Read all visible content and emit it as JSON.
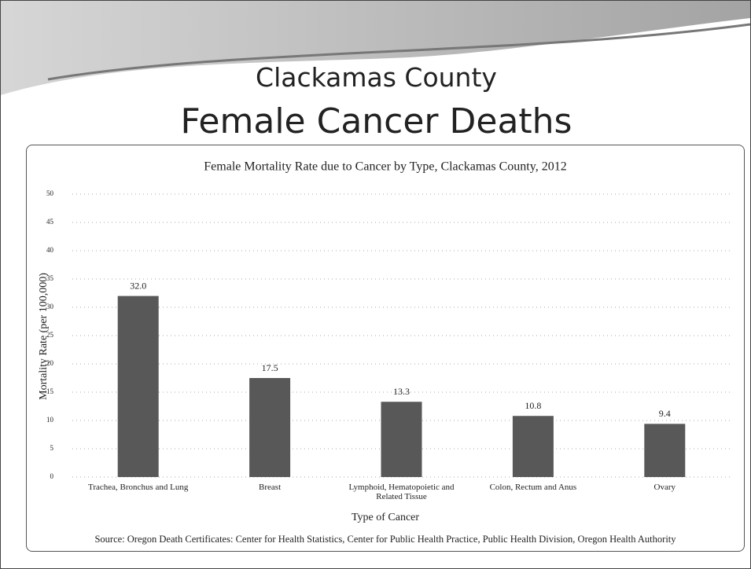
{
  "slide": {
    "title_line1": "Clackamas County",
    "title_line2": "Female Cancer Deaths"
  },
  "chart_data": {
    "type": "bar",
    "title": "Female Mortality Rate due to Cancer by Type, Clackamas County, 2012",
    "x_label": "Type of Cancer",
    "y_label": "Mortality Rate (per 100,000)",
    "categories": [
      "Trachea, Bronchus and Lung",
      "Breast",
      "Lymphoid, Hematopoietic and Related Tissue",
      "Colon, Rectum and Anus",
      "Ovary"
    ],
    "values": [
      32.0,
      17.5,
      13.3,
      10.8,
      9.4
    ],
    "value_labels": [
      "32.0",
      "17.5",
      "13.3",
      "10.8",
      "9.4"
    ],
    "color": "#585858",
    "ylim": [
      0,
      50
    ],
    "yticks": [
      0,
      5,
      10,
      15,
      20,
      25,
      30,
      35,
      40,
      45,
      50
    ],
    "grid": true,
    "source": "Source: Oregon Death Certificates: Center for Health Statistics, Center for Public Health Practice, Public Health Division, Oregon Health Authority"
  }
}
